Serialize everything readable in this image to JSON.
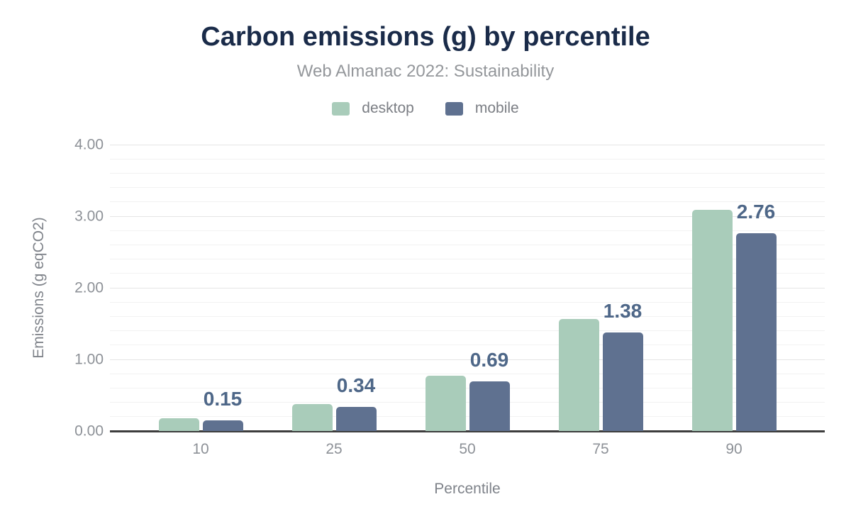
{
  "chart_data": {
    "type": "bar",
    "title": "Carbon emissions (g) by percentile",
    "subtitle": "Web Almanac 2022: Sustainability",
    "xlabel": "Percentile",
    "ylabel": "Emissions (g eqCO2)",
    "categories": [
      "10",
      "25",
      "50",
      "75",
      "90"
    ],
    "series": [
      {
        "name": "desktop",
        "color": "#a9ccba",
        "values": [
          0.18,
          0.38,
          0.77,
          1.56,
          3.09
        ]
      },
      {
        "name": "mobile",
        "color": "#5f7190",
        "values": [
          0.15,
          0.34,
          0.69,
          1.38,
          2.76
        ]
      }
    ],
    "bar_labels": {
      "labeled_series": "mobile",
      "values": [
        "0.15",
        "0.34",
        "0.69",
        "1.38",
        "2.76"
      ]
    },
    "ylim": [
      0,
      4
    ],
    "y_major_ticks": [
      "0.00",
      "1.00",
      "2.00",
      "3.00",
      "4.00"
    ],
    "y_minor_step": 0.2,
    "grid": "horizontal-only",
    "legend_position": "top-center"
  },
  "colors": {
    "title": "#1a2b49",
    "subtitle": "#94979b",
    "legend_text": "#7b7e84",
    "axis_tick_text": "#8d9197",
    "axis_title_text": "#7f838a",
    "bar_label_text": "#4e6788",
    "baseline": "#3d3d3d",
    "gridline_minor": "#f2f2f2",
    "gridline_major": "#e5e5e5",
    "desktop_series": "#a9ccba",
    "mobile_series": "#5f7190"
  }
}
